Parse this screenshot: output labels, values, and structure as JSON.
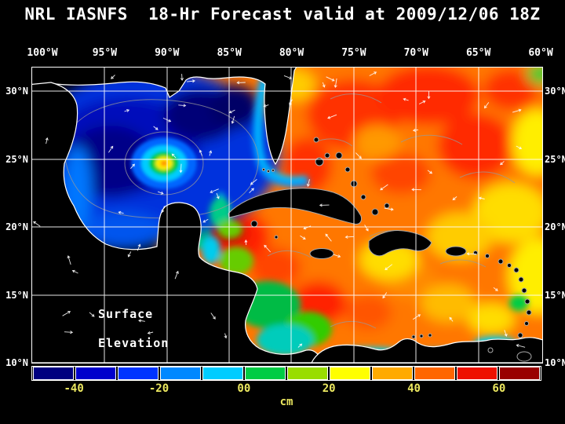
{
  "title": "NRL IASNFS  18-Hr Forecast valid at 2009/12/06 18Z",
  "map": {
    "lon_labels": [
      "100°W",
      "95°W",
      "90°W",
      "85°W",
      "80°W",
      "75°W",
      "70°W",
      "65°W",
      "60°W"
    ],
    "lat_labels": [
      "30°N",
      "25°N",
      "20°N",
      "15°N",
      "10°N"
    ],
    "overlay_label": {
      "line1": "Surface",
      "line2": "Elevation"
    }
  },
  "colorbar": {
    "unit": "cm",
    "tick_labels": [
      "-40",
      "-20",
      "00",
      "20",
      "40",
      "60"
    ],
    "segment_colors": [
      "#000080",
      "#0000cc",
      "#0033ff",
      "#0088ff",
      "#00ccff",
      "#00cc44",
      "#99dd00",
      "#ffff00",
      "#ffaa00",
      "#ff6600",
      "#ee1100",
      "#990000"
    ],
    "label_color": "#ece860"
  },
  "style_colors": {
    "background": "#000000",
    "text": "#ffffff",
    "coastline": "#ffffff",
    "island_outline": "#aaaaaa",
    "contour": "#999999",
    "vector_arrows": "#ffffff"
  }
}
